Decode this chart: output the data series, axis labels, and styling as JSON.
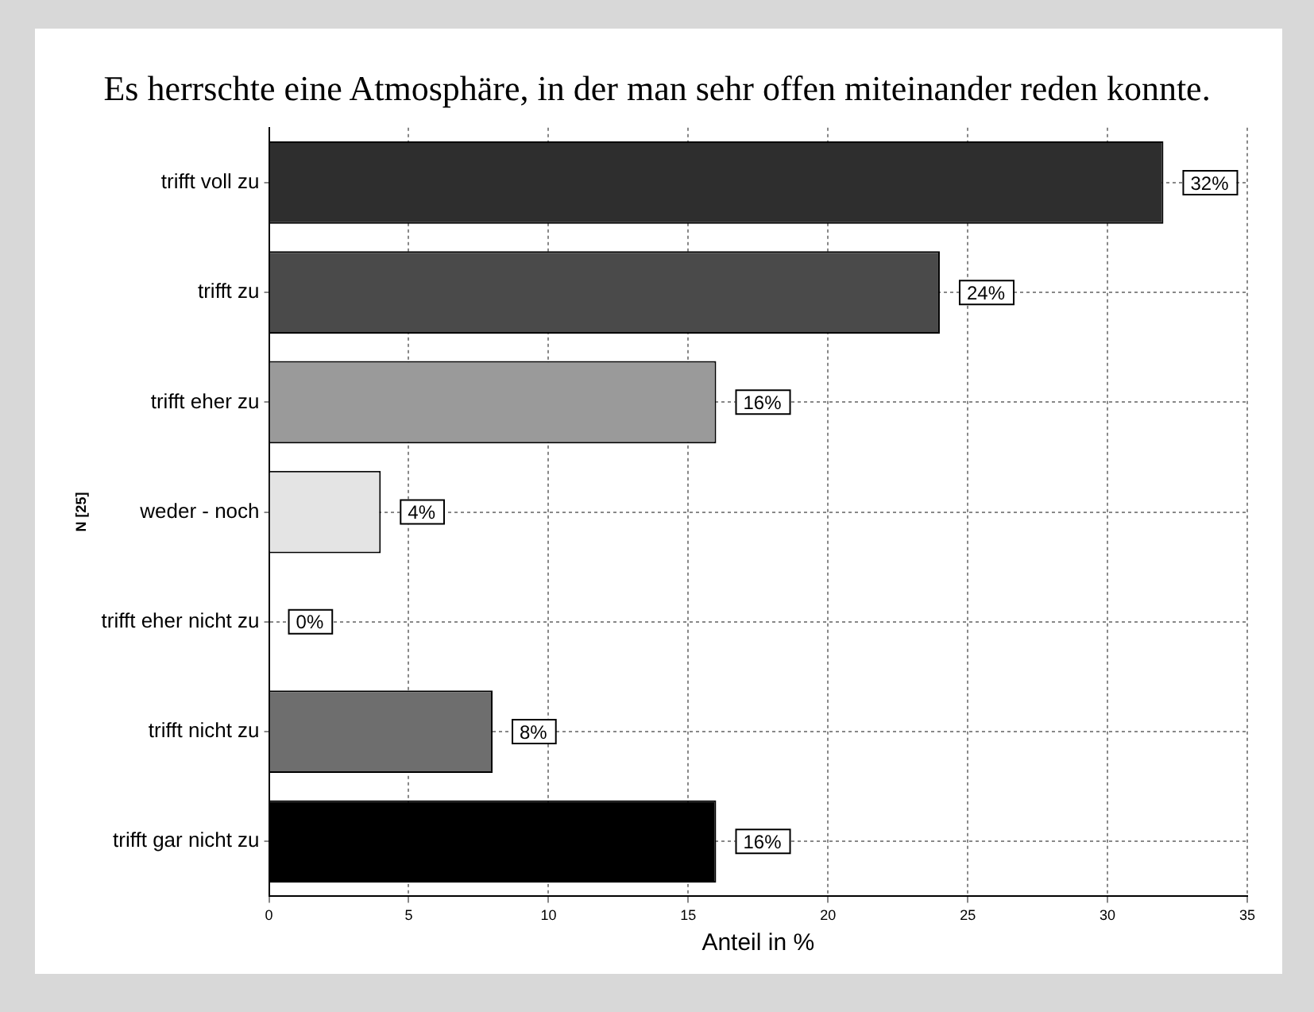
{
  "chart_data": {
    "type": "bar",
    "orientation": "horizontal",
    "title": "Es herrschte eine Atmosphäre, in der man sehr offen miteinander reden konnte.",
    "xlabel": "Anteil in %",
    "ylabel": "N [25]",
    "categories": [
      "trifft voll zu",
      "trifft zu",
      "trifft eher zu",
      "weder - noch",
      "trifft eher nicht zu",
      "trifft nicht zu",
      "trifft gar nicht zu"
    ],
    "values": [
      32,
      24,
      16,
      4,
      0,
      8,
      16
    ],
    "colors": [
      "#2e2e2e",
      "#4a4a4a",
      "#9a9a9a",
      "#e4e4e4",
      "#ffffff",
      "#6e6e6e",
      "#000000"
    ],
    "value_labels": [
      "32%",
      "24%",
      "16%",
      "4%",
      "0%",
      "8%",
      "16%"
    ],
    "xlim": [
      0,
      35
    ],
    "xticks": [
      0,
      5,
      10,
      15,
      20,
      25,
      30,
      35
    ],
    "grid": true,
    "legend": false
  }
}
